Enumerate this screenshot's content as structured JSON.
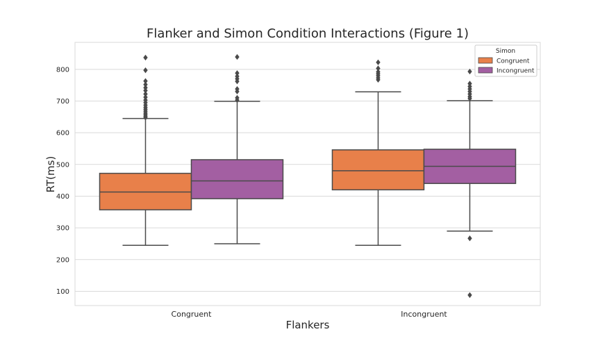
{
  "chart_data": {
    "type": "box",
    "title": "Flanker and Simon Condition Interactions (Figure 1)",
    "xlabel": "Flankers",
    "ylabel": "RT(ms)",
    "ylim": [
      55,
      885
    ],
    "yticks": [
      100,
      200,
      300,
      400,
      500,
      600,
      700,
      800
    ],
    "grid": true,
    "categories": [
      "Congruent",
      "Incongruent"
    ],
    "legend": {
      "title": "Simon",
      "position": "top-right"
    },
    "series": [
      {
        "name": "Congruent",
        "color": "#e8804a",
        "boxes": [
          {
            "whisker_low": 245,
            "q1": 357,
            "median": 413,
            "q3": 472,
            "whisker_high": 645,
            "outliers": [
              648,
              652,
              657,
              662,
              668,
              674,
              680,
              687,
              695,
              703,
              712,
              722,
              733,
              742,
              752,
              763,
              797,
              837
            ]
          },
          {
            "whisker_low": 245,
            "q1": 420,
            "median": 480,
            "q3": 546,
            "whisker_high": 729,
            "outliers": [
              767,
              773,
              780,
              786,
              792,
              803,
              822
            ]
          }
        ]
      },
      {
        "name": "Incongruent",
        "color": "#a35fa2",
        "boxes": [
          {
            "whisker_low": 250,
            "q1": 392,
            "median": 448,
            "q3": 515,
            "whisker_high": 699,
            "outliers": [
              703,
              710,
              730,
              738,
              762,
              770,
              778,
              788,
              839
            ]
          },
          {
            "whisker_low": 290,
            "q1": 440,
            "median": 494,
            "q3": 548,
            "whisker_high": 701,
            "outliers": [
              88,
              267,
              708,
              714,
              722,
              730,
              738,
              746,
              755,
              793
            ]
          }
        ]
      }
    ]
  }
}
